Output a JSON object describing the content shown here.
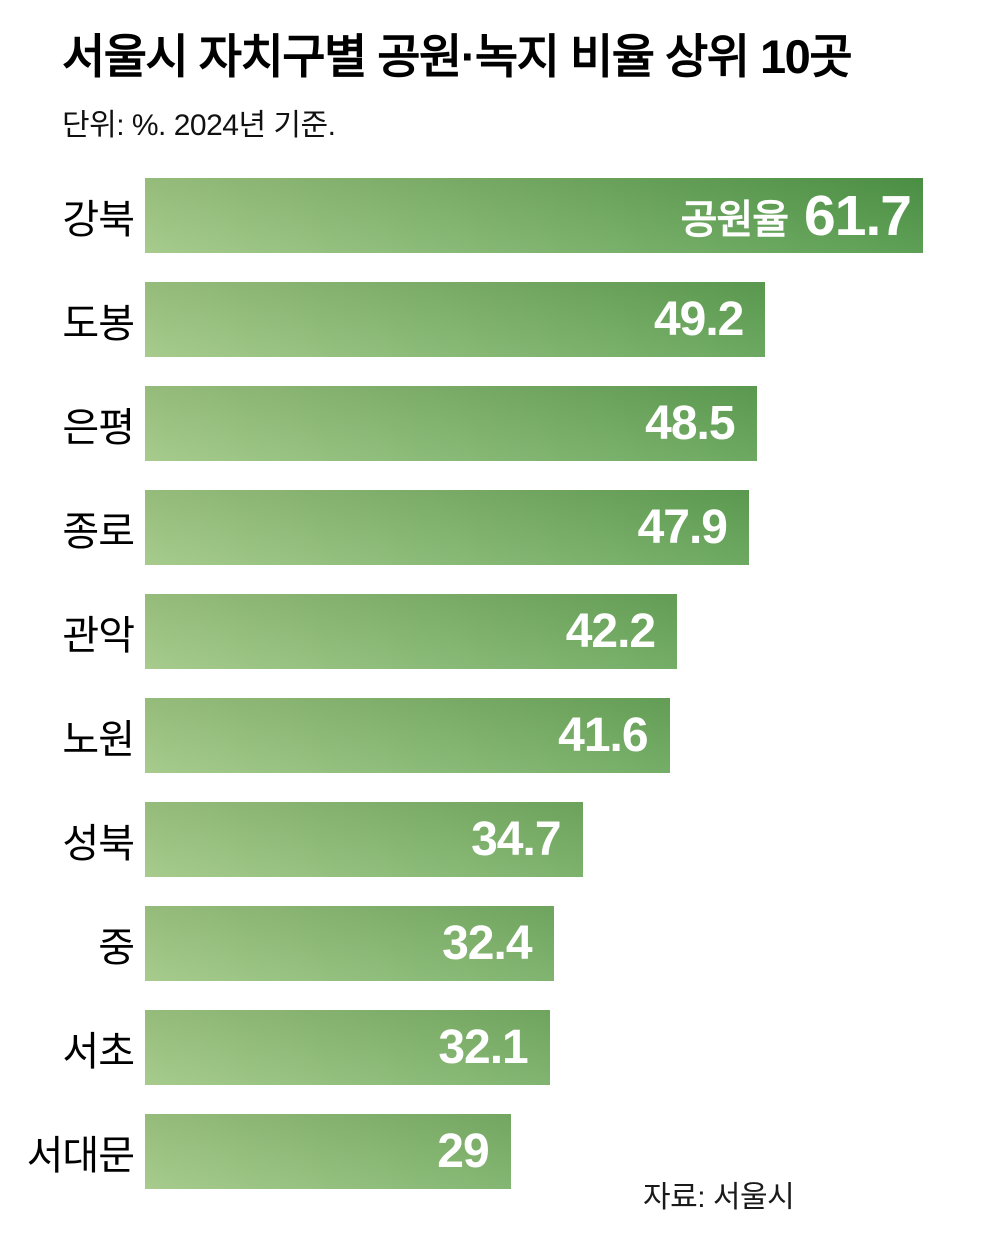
{
  "header": {
    "title": "서울시 자치구별 공원·녹지 비율 상위 10곳",
    "subtitle": "단위: %. 2024년 기준."
  },
  "source": "자료: 서울시",
  "colors": {
    "bar_gradient_start": "#9fc783",
    "bar_gradient_end": "#4f9747",
    "value_text": "#ffffff",
    "label_text": "#000000",
    "background": "#ffffff"
  },
  "chart_data": {
    "type": "bar",
    "orientation": "horizontal",
    "title": "서울시 자치구별 공원·녹지 비율 상위 10곳",
    "unit": "%",
    "year": "2024",
    "xlim": [
      0,
      61.7
    ],
    "grid": false,
    "legend": "none",
    "first_bar_annotation": "공원율",
    "categories": [
      "강북",
      "도봉",
      "은평",
      "종로",
      "관악",
      "노원",
      "성북",
      "중",
      "서초",
      "서대문"
    ],
    "values": [
      61.7,
      49.2,
      48.5,
      47.9,
      42.2,
      41.6,
      34.7,
      32.4,
      32.1,
      29
    ],
    "value_labels": [
      "61.7",
      "49.2",
      "48.5",
      "47.9",
      "42.2",
      "41.6",
      "34.7",
      "32.4",
      "32.1",
      "29"
    ]
  }
}
